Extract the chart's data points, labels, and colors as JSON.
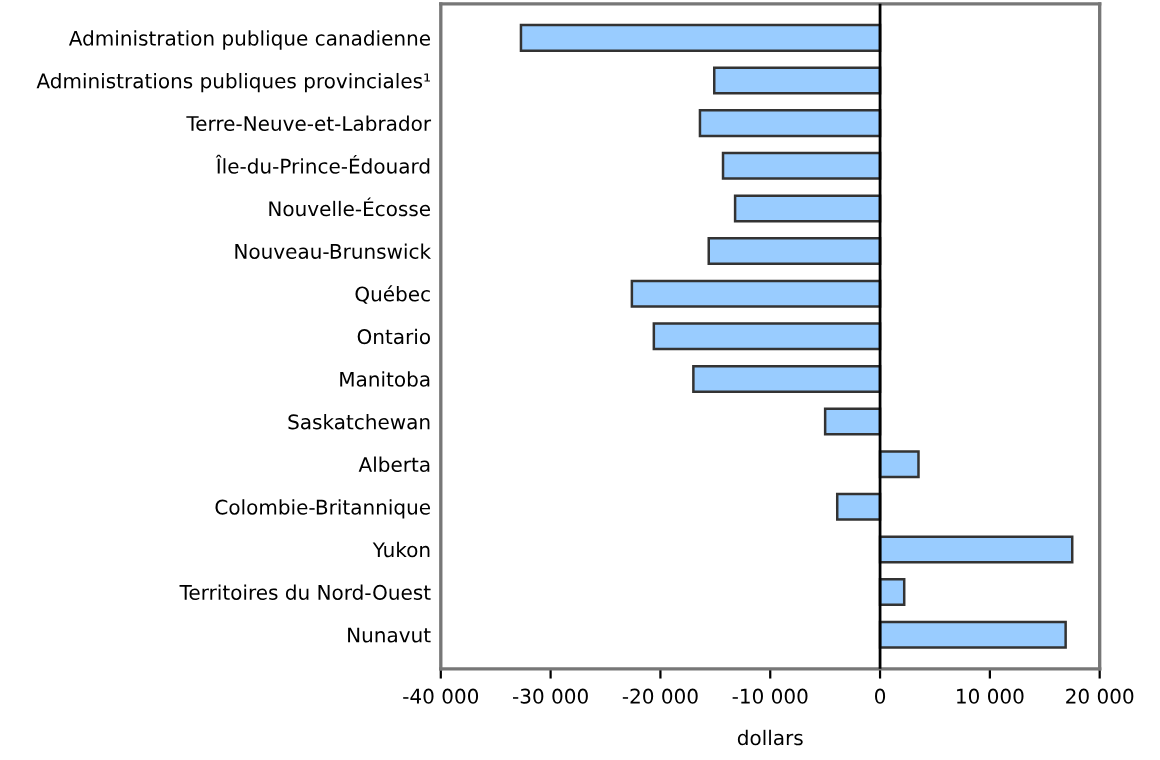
{
  "chart_data": {
    "type": "bar",
    "orientation": "horizontal",
    "xlabel": "dollars",
    "categories": [
      "Administration publique canadienne",
      "Administrations publiques provinciales¹",
      "Terre-Neuve-et-Labrador",
      "Île-du-Prince-Édouard",
      "Nouvelle-Écosse",
      "Nouveau-Brunswick",
      "Québec",
      "Ontario",
      "Manitoba",
      "Saskatchewan",
      "Alberta",
      "Colombie-Britannique",
      "Yukon",
      "Territoires du Nord-Ouest",
      "Nunavut"
    ],
    "values": [
      -32700,
      -15100,
      -16400,
      -14300,
      -13200,
      -15600,
      -22600,
      -20600,
      -17000,
      -5000,
      3500,
      -3900,
      17500,
      2200,
      16900
    ],
    "color": "#99ccff",
    "xlim": [
      -40000,
      20000
    ],
    "xticks": [
      {
        "value": -40000,
        "label": "-40 000"
      },
      {
        "value": -30000,
        "label": "-30 000"
      },
      {
        "value": -20000,
        "label": "-20 000"
      },
      {
        "value": -10000,
        "label": "-10 000"
      },
      0,
      {
        "value": 10000,
        "label": "10 000"
      },
      {
        "value": 20000,
        "label": "20 000"
      }
    ],
    "ref_lines": [
      {
        "axis": "x",
        "value": 0,
        "color": "#000000"
      }
    ],
    "grid": false,
    "legend": false
  }
}
